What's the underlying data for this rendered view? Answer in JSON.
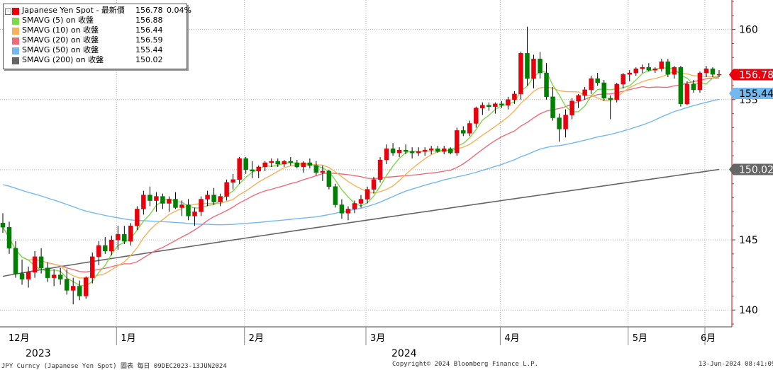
{
  "legend": {
    "items": [
      {
        "label": "Japanese Yen Spot - 最新價",
        "value": "156.78",
        "change": "0.04%",
        "color": "#e8000d"
      },
      {
        "label": "SMAVG (5)  on 收盤",
        "value": "156.88",
        "color": "#7fd84a"
      },
      {
        "label": "SMAVG (10)  on 收盤",
        "value": "156.44",
        "color": "#f7b15a"
      },
      {
        "label": "SMAVG (20)  on 收盤",
        "value": "156.59",
        "color": "#f06b78"
      },
      {
        "label": "SMAVG (50)  on 收盤",
        "value": "155.44",
        "color": "#74b8f0"
      },
      {
        "label": "SMAVG (200)  on 收盤",
        "value": "150.02",
        "color": "#666666"
      }
    ]
  },
  "footer": {
    "left": "JPY Curncy (Japanese Yen Spot) 圖表  每日 09DEC2023-13JUN2024",
    "center": "Copyright© 2024 Bloomberg Finance L.P.",
    "right": "13-Jun-2024 08:41:09"
  },
  "chart_data": {
    "type": "candlestick",
    "y_axis": {
      "ticks": [
        140,
        145,
        150,
        155,
        160
      ],
      "range": [
        138.8,
        162.1
      ],
      "side": "right"
    },
    "x_axis": {
      "month_labels": [
        "12月",
        "1月",
        "2月",
        "3月",
        "4月",
        "5月",
        "6月"
      ],
      "year_labels": [
        "2023",
        "2024"
      ]
    },
    "grid": "dotted vertical at month boundaries, horizontal at price ticks",
    "price_tags": [
      {
        "value": "156.78",
        "color": "#e8000d",
        "text_color": "#ffffff"
      },
      {
        "value": "155.44",
        "color": "#74b8f0",
        "text_color": "#000000"
      },
      {
        "value": "150.02",
        "color": "#666666",
        "text_color": "#ffffff"
      }
    ],
    "colors": {
      "up": "#e8000d",
      "down": "#008000"
    },
    "candles": [
      [
        146.2,
        146.9,
        145.5,
        145.9
      ],
      [
        145.9,
        146.3,
        144.0,
        144.4
      ],
      [
        144.4,
        144.9,
        142.3,
        142.6
      ],
      [
        142.6,
        143.6,
        141.8,
        142.2
      ],
      [
        142.2,
        143.1,
        141.6,
        142.7
      ],
      [
        142.7,
        144.2,
        142.3,
        143.8
      ],
      [
        143.8,
        144.4,
        142.6,
        143.0
      ],
      [
        143.0,
        143.4,
        142.0,
        142.3
      ],
      [
        142.3,
        142.9,
        141.7,
        142.5
      ],
      [
        142.5,
        143.0,
        141.8,
        142.2
      ],
      [
        142.2,
        142.9,
        141.1,
        141.4
      ],
      [
        141.4,
        142.3,
        140.4,
        141.7
      ],
      [
        141.7,
        142.1,
        140.7,
        141.0
      ],
      [
        141.0,
        142.4,
        140.8,
        142.3
      ],
      [
        142.3,
        144.1,
        141.9,
        143.8
      ],
      [
        143.8,
        144.9,
        143.2,
        144.6
      ],
      [
        144.6,
        145.2,
        144.0,
        144.2
      ],
      [
        144.2,
        145.3,
        143.9,
        145.0
      ],
      [
        145.0,
        146.0,
        144.3,
        145.4
      ],
      [
        145.4,
        146.0,
        144.7,
        144.9
      ],
      [
        144.9,
        146.2,
        144.6,
        146.0
      ],
      [
        146.0,
        147.4,
        145.7,
        147.2
      ],
      [
        147.2,
        148.5,
        146.8,
        148.2
      ],
      [
        148.2,
        148.8,
        147.4,
        147.8
      ],
      [
        147.8,
        148.4,
        147.0,
        148.1
      ],
      [
        148.1,
        148.3,
        147.2,
        147.6
      ],
      [
        147.6,
        148.1,
        147.0,
        147.9
      ],
      [
        147.9,
        148.4,
        147.2,
        147.3
      ],
      [
        147.3,
        147.8,
        146.7,
        147.5
      ],
      [
        147.5,
        147.9,
        146.4,
        146.7
      ],
      [
        146.7,
        147.3,
        146.0,
        147.0
      ],
      [
        147.0,
        148.1,
        146.7,
        147.9
      ],
      [
        147.9,
        148.5,
        147.4,
        148.2
      ],
      [
        148.2,
        148.7,
        147.5,
        147.7
      ],
      [
        147.7,
        148.3,
        147.4,
        148.1
      ],
      [
        148.1,
        149.3,
        147.8,
        149.1
      ],
      [
        149.1,
        149.7,
        148.6,
        149.3
      ],
      [
        149.3,
        150.9,
        149.0,
        150.8
      ],
      [
        150.8,
        150.9,
        149.7,
        150.0
      ],
      [
        150.0,
        150.6,
        149.4,
        149.9
      ],
      [
        149.9,
        150.3,
        149.4,
        150.2
      ],
      [
        150.2,
        150.6,
        149.9,
        150.5
      ],
      [
        150.5,
        150.8,
        150.2,
        150.6
      ],
      [
        150.6,
        150.8,
        150.2,
        150.4
      ],
      [
        150.4,
        150.7,
        150.2,
        150.6
      ],
      [
        150.6,
        150.9,
        150.3,
        150.5
      ],
      [
        150.5,
        150.7,
        150.1,
        150.2
      ],
      [
        150.2,
        150.6,
        149.8,
        150.5
      ],
      [
        150.5,
        150.8,
        150.1,
        150.3
      ],
      [
        150.3,
        150.6,
        149.6,
        149.8
      ],
      [
        149.8,
        150.3,
        149.2,
        149.9
      ],
      [
        149.9,
        150.0,
        148.6,
        148.8
      ],
      [
        148.8,
        149.0,
        147.3,
        147.5
      ],
      [
        147.5,
        147.9,
        146.5,
        146.9
      ],
      [
        146.9,
        147.4,
        146.4,
        147.2
      ],
      [
        147.2,
        147.8,
        146.9,
        147.6
      ],
      [
        147.6,
        148.2,
        147.3,
        147.9
      ],
      [
        147.9,
        148.8,
        147.6,
        148.6
      ],
      [
        148.6,
        149.5,
        148.3,
        149.3
      ],
      [
        149.3,
        150.9,
        149.1,
        150.7
      ],
      [
        150.7,
        151.8,
        150.4,
        151.5
      ],
      [
        151.5,
        151.9,
        151.0,
        151.2
      ],
      [
        151.2,
        151.6,
        150.9,
        151.4
      ],
      [
        151.4,
        151.8,
        151.1,
        151.3
      ],
      [
        151.3,
        151.6,
        150.8,
        151.2
      ],
      [
        151.2,
        151.6,
        151.0,
        151.3
      ],
      [
        151.3,
        151.6,
        151.0,
        151.4
      ],
      [
        151.4,
        151.7,
        151.1,
        151.5
      ],
      [
        151.5,
        151.7,
        151.2,
        151.3
      ],
      [
        151.3,
        151.7,
        151.1,
        151.5
      ],
      [
        151.5,
        151.6,
        151.1,
        151.2
      ],
      [
        151.2,
        153.0,
        151.0,
        152.8
      ],
      [
        152.8,
        153.1,
        152.4,
        152.6
      ],
      [
        152.6,
        153.5,
        152.4,
        153.3
      ],
      [
        153.3,
        154.5,
        153.0,
        154.4
      ],
      [
        154.4,
        154.8,
        153.9,
        154.6
      ],
      [
        154.6,
        154.8,
        154.2,
        154.5
      ],
      [
        154.5,
        154.8,
        154.0,
        154.7
      ],
      [
        154.7,
        154.9,
        154.4,
        154.6
      ],
      [
        154.6,
        155.2,
        154.3,
        155.0
      ],
      [
        155.0,
        155.6,
        154.7,
        155.4
      ],
      [
        155.4,
        158.4,
        155.0,
        158.3
      ],
      [
        158.3,
        160.2,
        156.0,
        156.5
      ],
      [
        156.5,
        158.2,
        155.8,
        157.9
      ],
      [
        157.9,
        158.4,
        156.5,
        156.9
      ],
      [
        156.9,
        157.6,
        155.0,
        155.2
      ],
      [
        155.2,
        155.9,
        153.5,
        153.7
      ],
      [
        153.7,
        154.0,
        152.0,
        152.9
      ],
      [
        152.9,
        154.3,
        152.3,
        153.9
      ],
      [
        153.9,
        155.1,
        153.6,
        154.9
      ],
      [
        154.9,
        155.4,
        154.4,
        155.3
      ],
      [
        155.3,
        155.9,
        155.0,
        155.7
      ],
      [
        155.7,
        156.7,
        155.4,
        156.5
      ],
      [
        156.5,
        156.9,
        156.0,
        156.2
      ],
      [
        156.2,
        156.4,
        154.9,
        155.1
      ],
      [
        155.1,
        155.3,
        153.6,
        155.0
      ],
      [
        155.0,
        156.2,
        154.8,
        156.1
      ],
      [
        156.1,
        156.9,
        155.8,
        156.8
      ],
      [
        156.8,
        157.1,
        156.3,
        156.9
      ],
      [
        156.9,
        157.3,
        156.7,
        157.2
      ],
      [
        157.2,
        157.5,
        156.9,
        157.3
      ],
      [
        157.3,
        157.6,
        157.0,
        157.1
      ],
      [
        157.1,
        157.3,
        156.9,
        157.2
      ],
      [
        157.2,
        157.9,
        157.0,
        157.7
      ],
      [
        157.7,
        157.9,
        156.6,
        156.8
      ],
      [
        156.8,
        157.4,
        156.5,
        157.3
      ],
      [
        157.3,
        157.4,
        154.5,
        154.7
      ],
      [
        154.7,
        156.3,
        154.6,
        156.1
      ],
      [
        156.1,
        156.4,
        155.5,
        155.7
      ],
      [
        155.7,
        157.0,
        155.5,
        156.9
      ],
      [
        156.9,
        157.4,
        156.6,
        157.2
      ],
      [
        157.2,
        157.3,
        156.6,
        156.8
      ],
      [
        156.8,
        157.1,
        156.6,
        156.8
      ]
    ]
  }
}
